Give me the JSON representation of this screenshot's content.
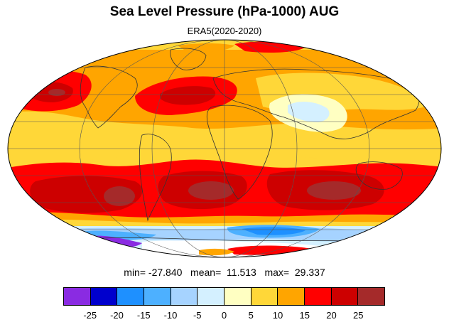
{
  "header": {
    "title": "Sea Level Pressure (hPa-1000) AUG",
    "subtitle": "ERA5(2020-2020)"
  },
  "stats": {
    "line": "min= -27.840   mean=  11.513   max=  29.337",
    "min": -27.84,
    "mean": 11.513,
    "max": 29.337
  },
  "colorbar": {
    "colors": [
      "#8a2be2",
      "#0000cd",
      "#1e90ff",
      "#4db0ff",
      "#a6d3ff",
      "#d4f0ff",
      "#ffffc2",
      "#ffd738",
      "#ffa500",
      "#ff0000",
      "#cd0000",
      "#a52a2a"
    ],
    "tick_labels": [
      "-25",
      "-20",
      "-15",
      "-10",
      "-5",
      "0",
      "5",
      "10",
      "15",
      "20",
      "25"
    ]
  },
  "map": {
    "projection": "mollweide",
    "graticule": true,
    "coastlines": true
  }
}
